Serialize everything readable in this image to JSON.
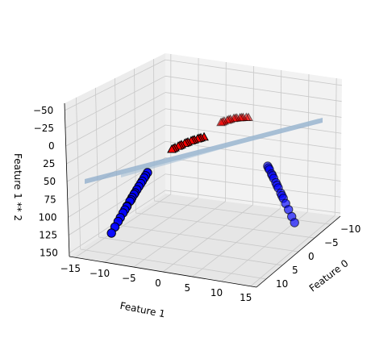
{
  "chart_data": {
    "type": "scatter3d",
    "title": "",
    "xlabel": "Feature 0",
    "ylabel": "Feature 1",
    "zlabel": "Feature 1 ** 2",
    "xticks": [
      "−10",
      "−5",
      "0",
      "5",
      "10"
    ],
    "yticks": [
      "−15",
      "−10",
      "−5",
      "0",
      "5",
      "10",
      "15"
    ],
    "zticks": [
      "−50",
      "−25",
      "0",
      "25",
      "50",
      "75",
      "100",
      "125",
      "150"
    ],
    "zlim": [
      -60,
      155
    ],
    "grid": true,
    "inverted_z_axis": true,
    "colors": {
      "class0_fill": "#0000ff",
      "class1_fill": "#ff0000",
      "plane": "#8eaccb",
      "pane": "#f2f2f2",
      "grid": "#c8c8c8"
    },
    "series": [
      {
        "marker": "circle",
        "class": 0,
        "points": [
          [
            -11.5,
            -9.8,
            96
          ],
          [
            -11.2,
            -9.4,
            88
          ],
          [
            -10.9,
            -9.0,
            81
          ],
          [
            -10.6,
            -8.7,
            76
          ],
          [
            -10.3,
            -8.4,
            70
          ],
          [
            -10.0,
            -8.1,
            66
          ],
          [
            -9.7,
            -7.8,
            61
          ],
          [
            -9.3,
            -7.4,
            55
          ],
          [
            -9.0,
            -7.1,
            50
          ],
          [
            -8.6,
            -6.8,
            46
          ],
          [
            -8.3,
            -6.6,
            44
          ],
          [
            -8.0,
            -6.3,
            40
          ],
          [
            -7.6,
            -6.0,
            36
          ],
          [
            -7.2,
            -5.7,
            32
          ],
          [
            -6.8,
            -5.4,
            29
          ],
          [
            -6.4,
            -5.0,
            25
          ],
          [
            -6.0,
            -4.7,
            22
          ],
          [
            -5.6,
            -4.3,
            18
          ],
          [
            -9.5,
            -7.9,
            62
          ],
          [
            -8.8,
            -7.3,
            53
          ],
          [
            7.9,
            5.2,
            27
          ],
          [
            8.3,
            5.6,
            31
          ],
          [
            8.7,
            6.0,
            36
          ],
          [
            9.1,
            6.4,
            41
          ],
          [
            9.5,
            6.8,
            46
          ],
          [
            9.9,
            7.2,
            52
          ],
          [
            10.3,
            7.6,
            58
          ],
          [
            10.7,
            8.0,
            64
          ],
          [
            11.1,
            8.4,
            70
          ],
          [
            11.5,
            8.8,
            77
          ],
          [
            11.9,
            9.2,
            85
          ],
          [
            12.3,
            9.6,
            92
          ],
          [
            8.1,
            5.4,
            29
          ],
          [
            8.9,
            6.2,
            38
          ],
          [
            9.7,
            7.0,
            49
          ],
          [
            10.5,
            7.8,
            61
          ]
        ]
      },
      {
        "marker": "triangle",
        "class": 1,
        "points": [
          [
            -9.0,
            -3.2,
            10
          ],
          [
            -8.2,
            -2.6,
            7
          ],
          [
            -7.4,
            -2.0,
            4
          ],
          [
            -6.6,
            -1.4,
            2
          ],
          [
            -5.8,
            -0.8,
            1
          ],
          [
            -5.0,
            -0.2,
            0
          ],
          [
            -4.2,
            0.4,
            0
          ],
          [
            -3.4,
            1.0,
            1
          ],
          [
            -2.6,
            1.6,
            3
          ],
          [
            -1.8,
            2.2,
            5
          ],
          [
            -1.0,
            2.8,
            8
          ],
          [
            -8.6,
            -2.9,
            8
          ],
          [
            -7.0,
            -1.7,
            3
          ],
          [
            -5.4,
            -0.5,
            0
          ],
          [
            -3.8,
            0.7,
            0
          ],
          [
            -2.2,
            1.9,
            4
          ],
          [
            3.0,
            -2.0,
            4
          ],
          [
            3.6,
            -1.4,
            2
          ],
          [
            4.2,
            -0.8,
            1
          ],
          [
            4.8,
            -0.2,
            0
          ],
          [
            5.4,
            0.4,
            0
          ],
          [
            6.0,
            1.0,
            1
          ],
          [
            6.6,
            1.6,
            3
          ],
          [
            7.2,
            2.2,
            5
          ],
          [
            7.8,
            2.8,
            8
          ],
          [
            3.3,
            -1.7,
            3
          ],
          [
            4.5,
            -0.5,
            0
          ],
          [
            5.7,
            0.7,
            0
          ],
          [
            6.9,
            1.9,
            4
          ],
          [
            8.2,
            3.2,
            10
          ]
        ]
      }
    ]
  }
}
